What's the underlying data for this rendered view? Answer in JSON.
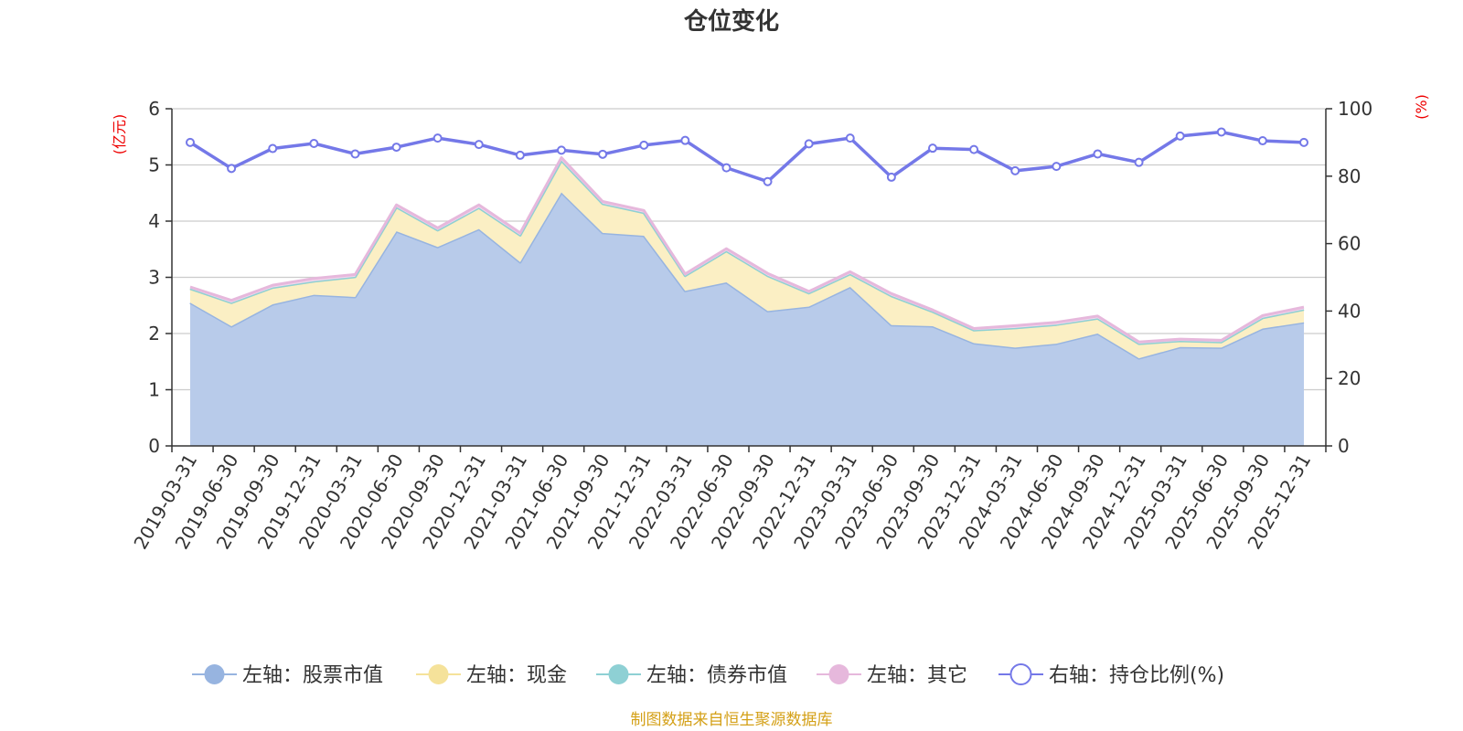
{
  "chart_data": {
    "type": "area",
    "title": "仓位变化",
    "left_axis_unit": "(亿元)",
    "right_axis_unit": "(%)",
    "left_ylim": [
      0,
      6
    ],
    "left_yticks": [
      0,
      1,
      2,
      3,
      4,
      5,
      6
    ],
    "right_ylim": [
      0,
      100
    ],
    "right_yticks": [
      0,
      20,
      40,
      60,
      80,
      100
    ],
    "grid": true,
    "legend_position": "bottom",
    "categories": [
      "2019-03-31",
      "2019-06-30",
      "2019-09-30",
      "2019-12-31",
      "2020-03-31",
      "2020-06-30",
      "2020-09-30",
      "2020-12-31",
      "2021-03-31",
      "2021-06-30",
      "2021-09-30",
      "2021-12-31",
      "2022-03-31",
      "2022-06-30",
      "2022-09-30",
      "2022-12-31",
      "2023-03-31",
      "2023-06-30",
      "2023-09-30",
      "2023-12-31",
      "2024-03-31",
      "2024-06-30",
      "2024-09-30",
      "2024-12-31",
      "2025-03-31",
      "2025-06-30",
      "2025-09-30",
      "2025-12-31"
    ],
    "series": [
      {
        "name": "左轴：股票市值",
        "axis": "left",
        "stack": true,
        "color": "#97b4e0",
        "fill": "#b8cbea",
        "values": [
          2.55,
          2.13,
          2.52,
          2.69,
          2.65,
          3.82,
          3.54,
          3.86,
          3.27,
          4.51,
          3.79,
          3.74,
          2.76,
          2.91,
          2.4,
          2.48,
          2.83,
          2.15,
          2.13,
          1.83,
          1.75,
          1.82,
          2.0,
          1.56,
          1.76,
          1.75,
          2.09,
          2.2
        ]
      },
      {
        "name": "左轴：现金",
        "axis": "left",
        "stack": true,
        "color": "#f5e29a",
        "fill": "#fbefc4",
        "values": [
          0.25,
          0.42,
          0.3,
          0.24,
          0.36,
          0.43,
          0.3,
          0.38,
          0.48,
          0.57,
          0.52,
          0.41,
          0.27,
          0.56,
          0.63,
          0.24,
          0.23,
          0.52,
          0.26,
          0.23,
          0.35,
          0.34,
          0.27,
          0.26,
          0.11,
          0.1,
          0.19,
          0.23
        ]
      },
      {
        "name": "左轴：债券市值",
        "axis": "left",
        "stack": true,
        "color": "#8ed0d4",
        "fill": "#b7e2e4",
        "values": [
          0,
          0,
          0,
          0,
          0,
          0,
          0,
          0,
          0,
          0,
          0,
          0,
          0,
          0,
          0,
          0,
          0,
          0,
          0,
          0,
          0,
          0,
          0,
          0,
          0,
          0,
          0,
          0
        ]
      },
      {
        "name": "左轴：其它",
        "axis": "left",
        "stack": true,
        "color": "#e6b8dc",
        "fill": "#f2d6ec",
        "values": [
          0.03,
          0.04,
          0.04,
          0.05,
          0.04,
          0.04,
          0.04,
          0.05,
          0.04,
          0.05,
          0.04,
          0.04,
          0.03,
          0.04,
          0.04,
          0.03,
          0.04,
          0.04,
          0.03,
          0.03,
          0.04,
          0.04,
          0.04,
          0.03,
          0.03,
          0.03,
          0.04,
          0.04
        ]
      },
      {
        "name": "右轴：持仓比例(%)",
        "axis": "right",
        "type": "line",
        "color": "#7478e8",
        "values": [
          90.0,
          82.3,
          88.2,
          89.7,
          86.6,
          88.6,
          91.3,
          89.4,
          86.2,
          87.7,
          86.5,
          89.2,
          90.6,
          82.5,
          78.4,
          89.6,
          91.3,
          79.7,
          88.3,
          87.9,
          81.6,
          82.9,
          86.6,
          84.1,
          91.9,
          93.1,
          90.5,
          90.0
        ]
      }
    ]
  },
  "source_text": "制图数据来自恒生聚源数据库"
}
